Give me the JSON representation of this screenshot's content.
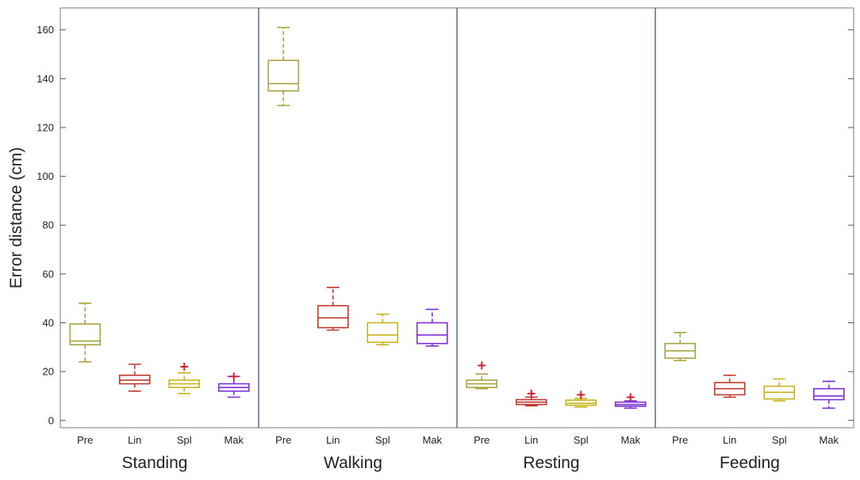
{
  "chart_data": {
    "type": "box",
    "ylabel": "Error distance (cm)",
    "ylim": [
      -3,
      169
    ],
    "yticks": [
      0,
      20,
      40,
      60,
      80,
      100,
      120,
      140,
      160
    ],
    "categories": [
      "Pre",
      "Lin",
      "Spl",
      "Mak"
    ],
    "category_colors": {
      "Pre": "#a8a33f",
      "Lin": "#c0392b",
      "Spl": "#c8b418",
      "Mak": "#7b2fd6"
    },
    "separator_color": "#4a6fa5",
    "groups": [
      {
        "name": "Standing",
        "boxes": [
          {
            "category": "Pre",
            "min": 24,
            "q1": 31,
            "median": 32.5,
            "q3": 39.5,
            "max": 48,
            "outliers": []
          },
          {
            "category": "Lin",
            "min": 12,
            "q1": 15,
            "median": 16.5,
            "q3": 18.5,
            "max": 23,
            "outliers": []
          },
          {
            "category": "Spl",
            "min": 11,
            "q1": 13.5,
            "median": 15,
            "q3": 16.5,
            "max": 19.5,
            "outliers": [
              22
            ]
          },
          {
            "category": "Mak",
            "min": 9.5,
            "q1": 12,
            "median": 13.5,
            "q3": 15,
            "max": 18,
            "outliers": [
              18
            ]
          }
        ]
      },
      {
        "name": "Walking",
        "boxes": [
          {
            "category": "Pre",
            "min": 129,
            "q1": 135,
            "median": 138,
            "q3": 147.5,
            "max": 161,
            "outliers": []
          },
          {
            "category": "Lin",
            "min": 37,
            "q1": 38,
            "median": 42,
            "q3": 47,
            "max": 54.5,
            "outliers": []
          },
          {
            "category": "Spl",
            "min": 31,
            "q1": 32,
            "median": 35,
            "q3": 40,
            "max": 43.5,
            "outliers": []
          },
          {
            "category": "Mak",
            "min": 30.5,
            "q1": 31.5,
            "median": 35,
            "q3": 40,
            "max": 45.5,
            "outliers": []
          }
        ]
      },
      {
        "name": "Resting",
        "boxes": [
          {
            "category": "Pre",
            "min": 13,
            "q1": 13.5,
            "median": 15,
            "q3": 16.5,
            "max": 19,
            "outliers": [
              22.5
            ]
          },
          {
            "category": "Lin",
            "min": 6,
            "q1": 6.5,
            "median": 7.5,
            "q3": 8.5,
            "max": 9.5,
            "outliers": [
              11
            ]
          },
          {
            "category": "Spl",
            "min": 5.5,
            "q1": 6.2,
            "median": 7,
            "q3": 8.3,
            "max": 9,
            "outliers": [
              10.5
            ]
          },
          {
            "category": "Mak",
            "min": 5,
            "q1": 5.8,
            "median": 6.5,
            "q3": 7.5,
            "max": 8,
            "outliers": [
              9.5
            ]
          }
        ]
      },
      {
        "name": "Feeding",
        "boxes": [
          {
            "category": "Pre",
            "min": 24.5,
            "q1": 25.5,
            "median": 28.5,
            "q3": 31.5,
            "max": 36,
            "outliers": []
          },
          {
            "category": "Lin",
            "min": 9.5,
            "q1": 10.5,
            "median": 13,
            "q3": 15.5,
            "max": 18.5,
            "outliers": []
          },
          {
            "category": "Spl",
            "min": 8,
            "q1": 8.8,
            "median": 11.5,
            "q3": 14,
            "max": 17,
            "outliers": []
          },
          {
            "category": "Mak",
            "min": 5,
            "q1": 8.5,
            "median": 10,
            "q3": 13,
            "max": 16,
            "outliers": []
          }
        ]
      }
    ]
  }
}
